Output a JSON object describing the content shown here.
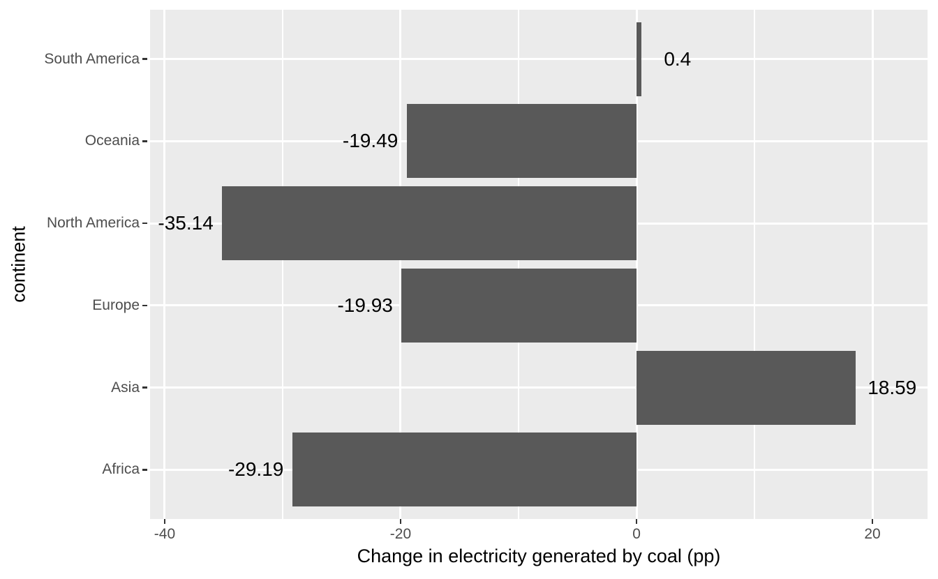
{
  "chart_data": {
    "type": "bar",
    "orientation": "horizontal",
    "title": "",
    "xlabel": "Change in electricity generated by coal (pp)",
    "ylabel": "continent",
    "categories_top_to_bottom": [
      "South America",
      "Oceania",
      "North America",
      "Europe",
      "Asia",
      "Africa"
    ],
    "series": [
      {
        "name": "change_in_coal_electricity_pp",
        "values": [
          0.4,
          -19.49,
          -35.14,
          -19.93,
          18.59,
          -29.19
        ]
      }
    ],
    "bar_value_labels": [
      "0.4",
      "-19.49",
      "-35.14",
      "-19.93",
      "18.59",
      "-29.19"
    ],
    "x_tick_labels": [
      "-40",
      "-20",
      "0",
      "20"
    ],
    "x_tick_values": [
      -40,
      -20,
      0,
      20
    ],
    "x_minor_gridline_values": [
      -30,
      -10,
      10
    ],
    "xlim": [
      -41.24,
      24.67
    ],
    "grid": "x-major, x-minor, y-major",
    "legend": false,
    "style": {
      "page_background": "#FFFFFF",
      "panel_background": "#EBEBEB",
      "bar_fill": "#595959",
      "gridline_color": "#FFFFFF",
      "axis_text_color": "#4D4D4D",
      "axis_title_color": "#000000",
      "bar_label_color": "#000000",
      "tick_mark_color": "#333333"
    }
  }
}
